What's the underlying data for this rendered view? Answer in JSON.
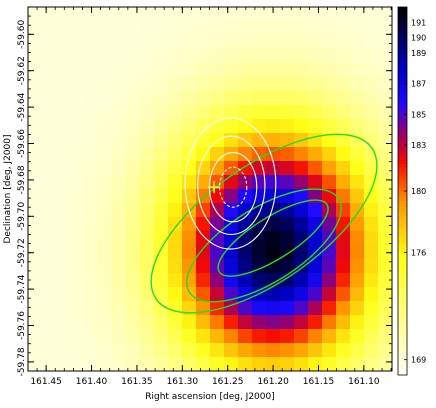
{
  "chart_data": {
    "type": "heatmap",
    "title": "",
    "xlabel": "Right ascension [deg, J2000]",
    "ylabel": "Declination [deg, J2000]",
    "xlim": [
      161.47,
      161.069
    ],
    "ylim": [
      -59.785,
      -59.585
    ],
    "x_ticks": [
      161.45,
      161.4,
      161.35,
      161.3,
      161.25,
      161.2,
      161.15,
      161.1
    ],
    "x_tick_labels": [
      "161.45",
      "161.40",
      "161.35",
      "161.30",
      "161.25",
      "161.20",
      "161.15",
      "161.10"
    ],
    "y_ticks": [
      -59.6,
      -59.62,
      -59.64,
      -59.66,
      -59.68,
      -59.7,
      -59.72,
      -59.74,
      -59.76,
      -59.78
    ],
    "y_tick_labels": [
      "-59.60",
      "-59.62",
      "-59.64",
      "-59.66",
      "-59.68",
      "-59.70",
      "-59.72",
      "-59.74",
      "-59.76",
      "-59.78"
    ],
    "grid": false,
    "colormap": "white-yellow-orange-red-blue-black",
    "color_range": [
      168,
      192
    ],
    "colorbar_ticks": [
      169,
      176,
      180,
      183,
      185,
      187,
      189,
      190,
      191
    ],
    "colorbar_tick_labels": [
      "169",
      "176",
      "180",
      "183",
      "185",
      "187",
      "189",
      "190",
      "191"
    ],
    "map_peak": {
      "x": 161.2,
      "y": -59.718,
      "value": 191.6
    },
    "map_floor": 169,
    "map_sigma": {
      "x": 0.075,
      "y": 0.045
    },
    "green_contours": [
      {
        "center": [
          161.2,
          -59.712
        ],
        "semi_axes": [
          0.07,
          0.023
        ],
        "rotation_deg": 32
      },
      {
        "center": [
          161.21,
          -59.716
        ],
        "semi_axes": [
          0.097,
          0.041
        ],
        "rotation_deg": 32
      },
      {
        "center": [
          161.21,
          -59.704
        ],
        "semi_axes": [
          0.145,
          0.064
        ],
        "rotation_deg": 35
      }
    ],
    "white_contours": [
      {
        "center": [
          161.244,
          -59.684
        ],
        "r": [
          0.015,
          0.011
        ],
        "dashed": true
      },
      {
        "center": [
          161.244,
          -59.684
        ],
        "r": [
          0.026,
          0.019
        ],
        "dashed": false
      },
      {
        "center": [
          161.246,
          -59.683
        ],
        "r": [
          0.037,
          0.027
        ],
        "dashed": false
      },
      {
        "center": [
          161.247,
          -59.682
        ],
        "r": [
          0.05,
          0.036
        ],
        "dashed": false
      }
    ],
    "marker": {
      "x": 161.265,
      "y": -59.684,
      "shape": "cross",
      "color": "#ffff30"
    }
  }
}
